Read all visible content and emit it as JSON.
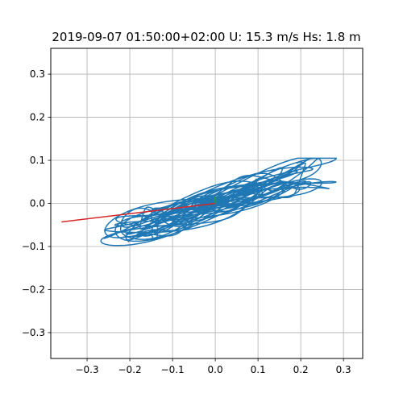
{
  "chart_data": {
    "type": "line",
    "title": "2019-09-07 01:50:00+02:00 U: 15.3 m/s Hs: 1.8 m",
    "xlabel": "",
    "ylabel": "",
    "xlim": [
      -0.385,
      0.345
    ],
    "ylim": [
      -0.36,
      0.36
    ],
    "x_ticks": [
      -0.3,
      -0.2,
      -0.1,
      0.0,
      0.1,
      0.2,
      0.3
    ],
    "x_tick_labels": [
      "−0.3",
      "−0.2",
      "−0.1",
      "0.0",
      "0.1",
      "0.2",
      "0.3"
    ],
    "y_ticks": [
      -0.3,
      -0.2,
      -0.1,
      0.0,
      0.1,
      0.2,
      0.3
    ],
    "y_tick_labels": [
      "−0.3",
      "−0.2",
      "−0.1",
      "0.0",
      "0.1",
      "0.2",
      "0.3"
    ],
    "grid": true,
    "trajectory": {
      "color": "#1f77b4",
      "x_range": [
        -0.36,
        0.31
      ],
      "y_range": [
        -0.1,
        0.105
      ],
      "center": [
        0.0,
        0.0
      ],
      "orientation_deg": 17
    },
    "series": [
      {
        "color": "#d62728",
        "x": [
          -0.36,
          0.0
        ],
        "y": [
          -0.043,
          0.0
        ]
      },
      {
        "color": "#2ca02c",
        "x": [
          0.0,
          0.0
        ],
        "y": [
          0.0,
          0.016
        ]
      }
    ]
  }
}
